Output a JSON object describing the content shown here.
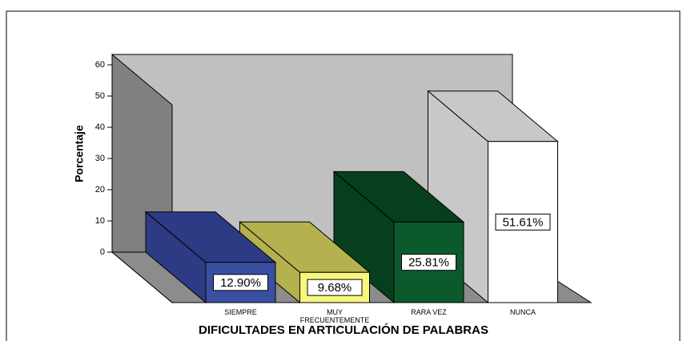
{
  "chart_data": {
    "type": "bar3d",
    "xlabel": "DIFICULTADES EN ARTICULACIÓN DE PALABRAS",
    "ylabel": "Porcentaje",
    "categories": [
      "SIEMPRE",
      "MUY FRECUENTEMENTE",
      "RARA VEZ",
      "NUNCA"
    ],
    "values": [
      12.9,
      9.68,
      25.81,
      51.61
    ],
    "value_labels": [
      "12.90%",
      "9.68%",
      "25.81%",
      "51.61%"
    ],
    "colors": [
      "#3a4fa2",
      "#f7f77c",
      "#0c5a2c",
      "#ffffff"
    ],
    "side_colors": [
      "#2c3b84",
      "#b5b14e",
      "#073f1e",
      "#c8c8c8"
    ],
    "ylim": [
      0,
      60
    ],
    "yticks": [
      0,
      10,
      20,
      30,
      40,
      50,
      60
    ]
  }
}
